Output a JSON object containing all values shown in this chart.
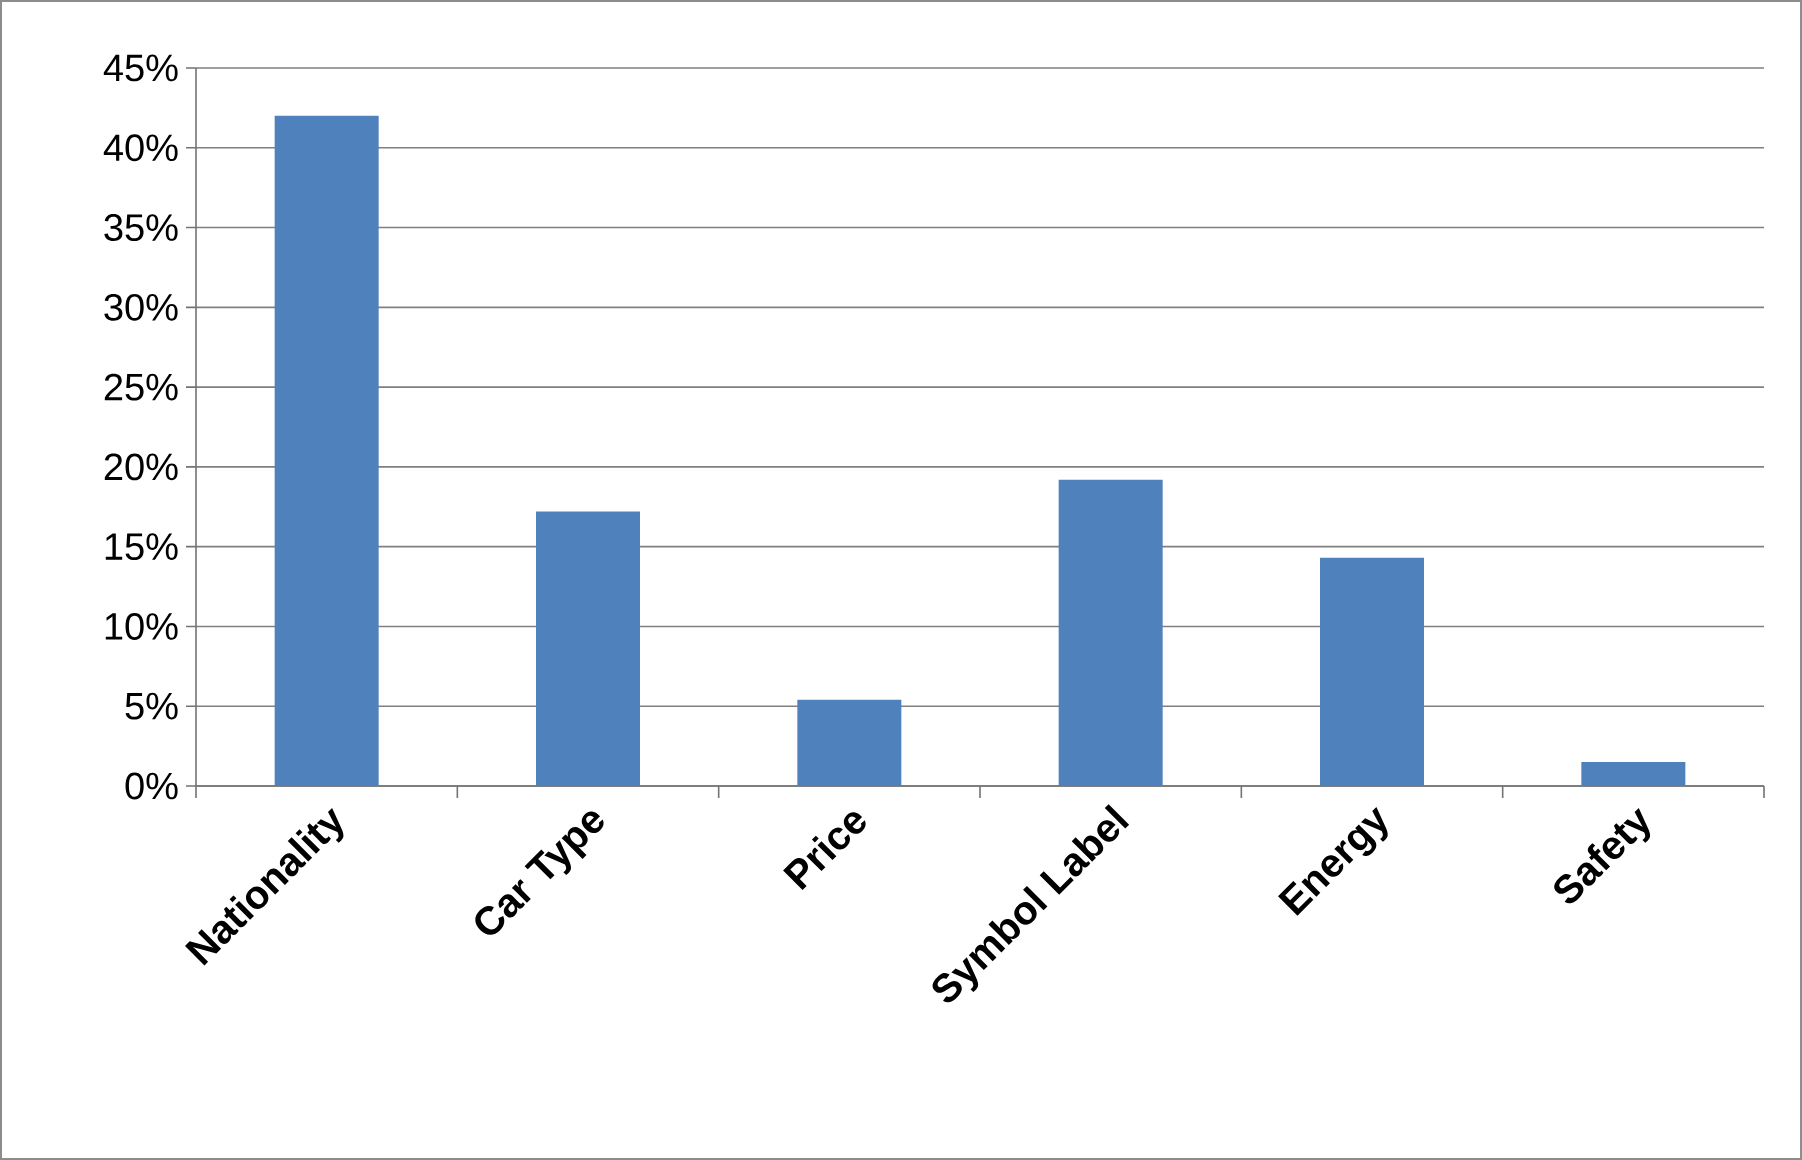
{
  "chart_data": {
    "type": "bar",
    "categories": [
      "Nationality",
      "Car Type",
      "Price",
      "Symbol Label",
      "Energy",
      "Safety"
    ],
    "values": [
      42,
      17.2,
      5.4,
      19.2,
      14.3,
      1.5
    ],
    "color": "#4f81bd",
    "ylim": [
      0,
      45
    ],
    "yticks": [
      {
        "value": 0,
        "label": "0%"
      },
      {
        "value": 5,
        "label": "5%"
      },
      {
        "value": 10,
        "label": "10%"
      },
      {
        "value": 15,
        "label": "15%"
      },
      {
        "value": 20,
        "label": "20%"
      },
      {
        "value": 25,
        "label": "25%"
      },
      {
        "value": 30,
        "label": "30%"
      },
      {
        "value": 35,
        "label": "35%"
      },
      {
        "value": 40,
        "label": "40%"
      },
      {
        "value": 45,
        "label": "45%"
      }
    ],
    "grid": "y"
  }
}
